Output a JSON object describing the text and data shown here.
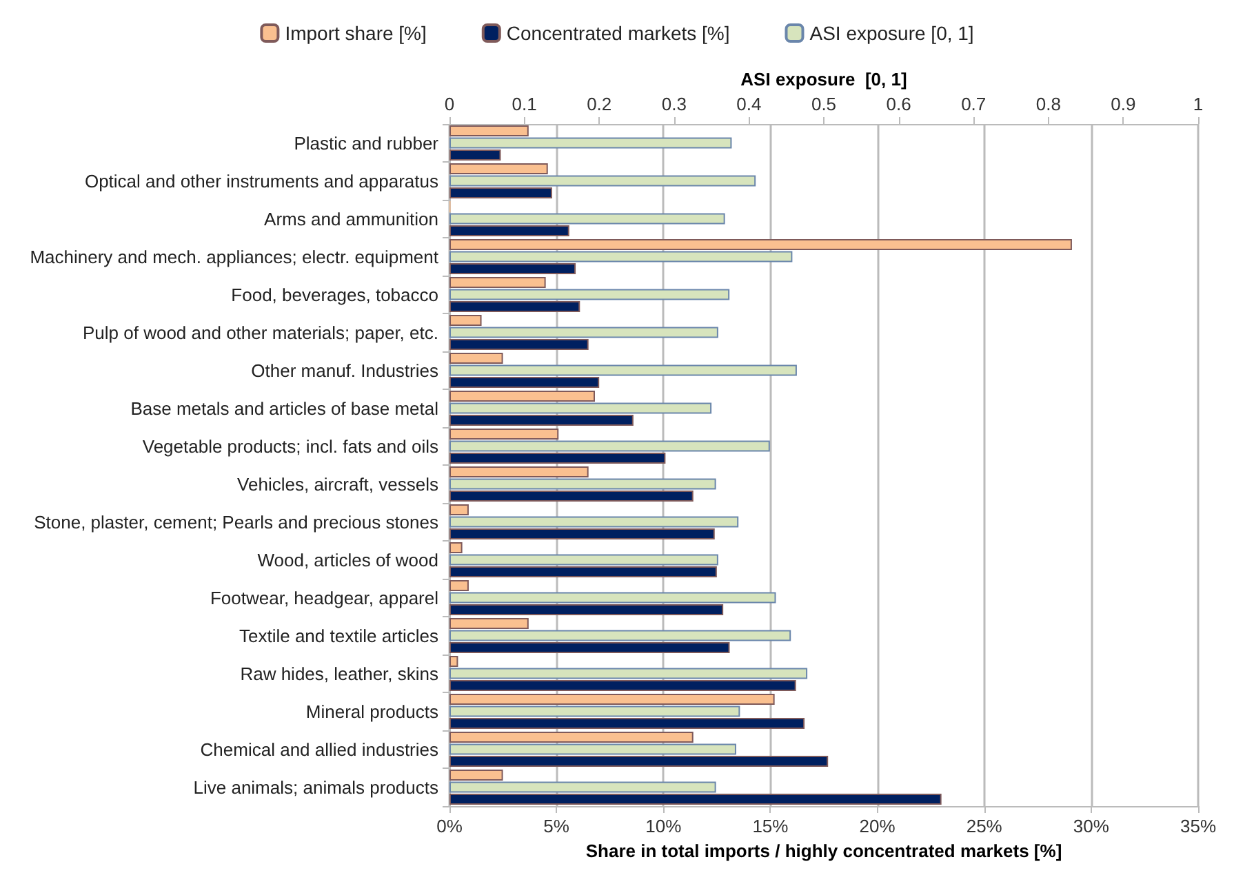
{
  "chart_data": {
    "type": "bar",
    "orientation": "horizontal",
    "categories": [
      "Plastic and rubber",
      "Optical and other instruments and apparatus",
      "Arms and ammunition",
      "Machinery and mech. appliances; electr. equipment",
      "Food, beverages, tobacco",
      "Pulp of wood and other materials; paper, etc.",
      "Other manuf. Industries",
      "Base metals and articles of base metal",
      "Vegetable products; incl. fats and oils",
      "Vehicles, aircraft, vessels",
      "Stone, plaster, cement; Pearls and precious stones",
      "Wood, articles of wood",
      "Footwear, headgear, apparel",
      "Textile and textile articles",
      "Raw hides, leather, skins",
      "Mineral products",
      "Chemical and allied industries",
      "Live animals; animals products"
    ],
    "series": [
      {
        "name": "Import share [%]",
        "color": "#fac090",
        "values": [
          3.7,
          4.6,
          0.05,
          29.1,
          4.5,
          1.5,
          2.5,
          6.8,
          5.1,
          6.5,
          0.9,
          0.6,
          0.9,
          3.7,
          0.4,
          15.2,
          11.4,
          2.5
        ]
      },
      {
        "name": "Concentrated markets [%]",
        "color": "#002060",
        "values": [
          2.4,
          4.8,
          5.6,
          5.9,
          6.1,
          6.5,
          7.0,
          8.6,
          10.1,
          11.4,
          12.4,
          12.5,
          12.8,
          13.1,
          16.2,
          16.6,
          17.7,
          23.0
        ]
      },
      {
        "name": "ASI exposure [0, 1]",
        "color": "#d7e4bd",
        "axis": "x2",
        "values": [
          0.377,
          0.409,
          0.368,
          0.458,
          0.374,
          0.359,
          0.464,
          0.35,
          0.428,
          0.356,
          0.386,
          0.359,
          0.436,
          0.456,
          0.478,
          0.388,
          0.383,
          0.356
        ]
      }
    ],
    "xlim": [
      0,
      35
    ],
    "xticks": [
      {
        "value": 0,
        "label": "0%"
      },
      {
        "value": 5,
        "label": "5%"
      },
      {
        "value": 10,
        "label": "10%"
      },
      {
        "value": 15,
        "label": "15%"
      },
      {
        "value": 20,
        "label": "20%"
      },
      {
        "value": 25,
        "label": "25%"
      },
      {
        "value": 30,
        "label": "30%"
      },
      {
        "value": 35,
        "label": "35%"
      }
    ],
    "x2lim": [
      0,
      1
    ],
    "x2ticks": [
      0,
      0.1,
      0.2,
      0.3,
      0.4,
      0.5,
      0.6,
      0.7,
      0.8,
      0.9,
      1
    ],
    "xlabel": "Share in total imports / highly concentrated markets [%]",
    "x2label": "ASI exposure  [0, 1]",
    "grid": "x",
    "legend": "top"
  }
}
